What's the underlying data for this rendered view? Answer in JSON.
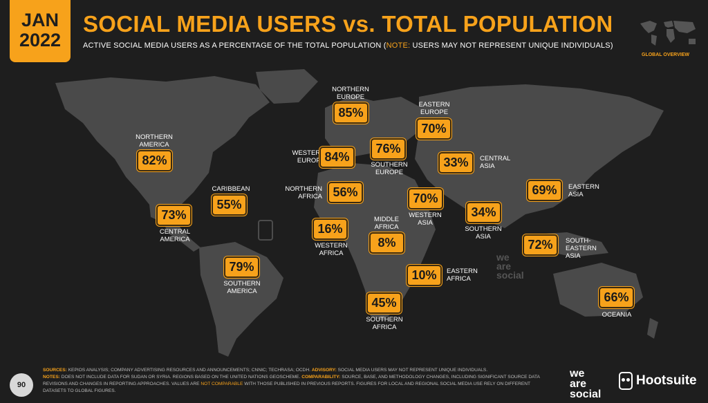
{
  "header": {
    "month": "JAN",
    "year": "2022",
    "title": "SOCIAL MEDIA USERS vs. TOTAL POPULATION",
    "subtitle_main": "ACTIVE SOCIAL MEDIA USERS AS A PERCENTAGE OF THE TOTAL POPULATION (",
    "subtitle_note_key": "NOTE:",
    "subtitle_note_text": " USERS MAY NOT REPRESENT UNIQUE INDIVIDUALS)",
    "section_label": "GLOBAL OVERVIEW"
  },
  "chart_data": {
    "type": "map",
    "unit": "%",
    "regions": [
      {
        "name": "NORTHERN AMERICA",
        "value": 82,
        "display": "82%"
      },
      {
        "name": "CENTRAL AMERICA",
        "value": 73,
        "display": "73%"
      },
      {
        "name": "CARIBBEAN",
        "value": 55,
        "display": "55%"
      },
      {
        "name": "SOUTHERN AMERICA",
        "value": 79,
        "display": "79%"
      },
      {
        "name": "NORTHERN EUROPE",
        "value": 85,
        "display": "85%"
      },
      {
        "name": "WESTERN EUROPE",
        "value": 84,
        "display": "84%"
      },
      {
        "name": "SOUTHERN EUROPE",
        "value": 76,
        "display": "76%"
      },
      {
        "name": "EASTERN EUROPE",
        "value": 70,
        "display": "70%"
      },
      {
        "name": "NORTHERN AFRICA",
        "value": 56,
        "display": "56%"
      },
      {
        "name": "WESTERN AFRICA",
        "value": 16,
        "display": "16%"
      },
      {
        "name": "MIDDLE AFRICA",
        "value": 8,
        "display": "8%"
      },
      {
        "name": "EASTERN AFRICA",
        "value": 10,
        "display": "10%"
      },
      {
        "name": "SOUTHERN AFRICA",
        "value": 45,
        "display": "45%"
      },
      {
        "name": "WESTERN ASIA",
        "value": 70,
        "display": "70%"
      },
      {
        "name": "CENTRAL ASIA",
        "value": 33,
        "display": "33%"
      },
      {
        "name": "SOUTHERN ASIA",
        "value": 34,
        "display": "34%"
      },
      {
        "name": "EASTERN ASIA",
        "value": 69,
        "display": "69%"
      },
      {
        "name": "SOUTH-EASTERN ASIA",
        "value": 72,
        "display": "72%"
      },
      {
        "name": "OCEANIA",
        "value": 66,
        "display": "66%"
      }
    ]
  },
  "labels": {
    "northern_america": [
      "NORTHERN",
      "AMERICA"
    ],
    "central_america": [
      "CENTRAL",
      "AMERICA"
    ],
    "caribbean": [
      "CARIBBEAN"
    ],
    "southern_america": [
      "SOUTHERN",
      "AMERICA"
    ],
    "northern_europe": [
      "NORTHERN",
      "EUROPE"
    ],
    "western_europe": [
      "WESTERN",
      "EUROPE"
    ],
    "southern_europe": [
      "SOUTHERN",
      "EUROPE"
    ],
    "eastern_europe": [
      "EASTERN",
      "EUROPE"
    ],
    "northern_africa": [
      "NORTHERN",
      "AFRICA"
    ],
    "western_africa": [
      "WESTERN",
      "AFRICA"
    ],
    "middle_africa": [
      "MIDDLE",
      "AFRICA"
    ],
    "eastern_africa": [
      "EASTERN",
      "AFRICA"
    ],
    "southern_africa": [
      "SOUTHERN",
      "AFRICA"
    ],
    "western_asia": [
      "WESTERN",
      "ASIA"
    ],
    "central_asia": [
      "CENTRAL",
      "ASIA"
    ],
    "southern_asia": [
      "SOUTHERN",
      "ASIA"
    ],
    "eastern_asia": [
      "EASTERN",
      "ASIA"
    ],
    "south_eastern_asia": [
      "SOUTH-EASTERN",
      "ASIA"
    ],
    "oceania": [
      "OCEANIA"
    ]
  },
  "footer": {
    "page_number": "90",
    "sources_key": "SOURCES:",
    "sources_text": " KEPIOS ANALYSIS; COMPANY ADVERTISING RESOURCES AND ANNOUNCEMENTS; CNNIC; TECHRASA; OCDH. ",
    "advisory_key": "ADVISORY:",
    "advisory_text": " SOCIAL MEDIA USERS MAY NOT REPRESENT UNIQUE INDIVIDUALS.",
    "notes_key": "NOTES:",
    "notes_text": " DOES NOT INCLUDE DATA FOR SUDAN OR SYRIA. REGIONS BASED ON THE UNITED NATIONS GEOSCHEME. ",
    "comparability_key": "COMPARABILITY:",
    "comparability_text": " SOURCE, BASE, AND METHODOLOGY CHANGES, INCLUDING SIGNIFICANT SOURCE DATA REVISIONS AND CHANGES IN REPORTING APPROACHES. VALUES ARE ",
    "not_comparable": "NOT COMPARABLE",
    "comparability_tail": " WITH THOSE PUBLISHED IN PREVIOUS REPORTS. FIGURES FOR LOCAL AND REGIONAL SOCIAL MEDIA USE RELY ON DIFFERENT DATASETS TO GLOBAL FIGURES.",
    "brand_we": "we",
    "brand_are": "are",
    "brand_social": "social",
    "brand_hootsuite": "Hootsuite",
    "watermark_we": "we",
    "watermark_are": "are",
    "watermark_social": "social"
  },
  "colors": {
    "accent": "#f7a21b",
    "background": "#1e1e1e",
    "land": "#4a4a4a"
  }
}
